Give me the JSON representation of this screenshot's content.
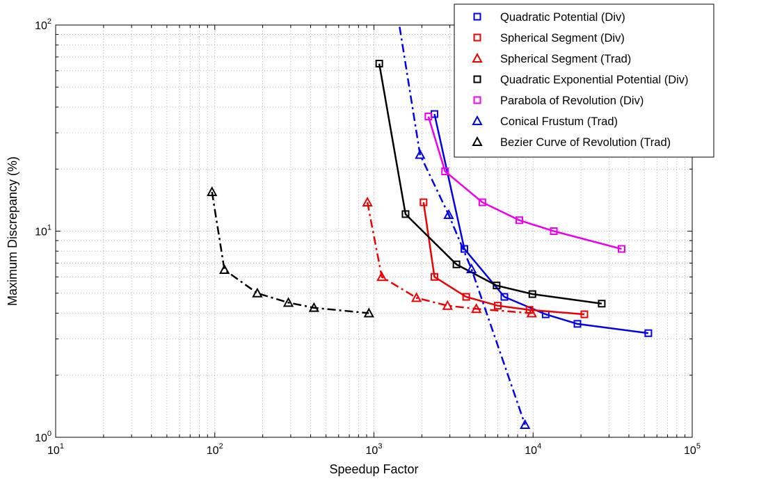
{
  "chart_data": {
    "type": "line",
    "title": "",
    "xlabel": "Speedup Factor",
    "ylabel": "Maximum Discrepancy (%)",
    "xscale": "log",
    "yscale": "log",
    "xlim": [
      10,
      100000
    ],
    "ylim": [
      1,
      100
    ],
    "grid": true,
    "legend_position": "top-right",
    "x_ticks": [
      {
        "base": "10",
        "exp": "1",
        "value": 10
      },
      {
        "base": "10",
        "exp": "2",
        "value": 100
      },
      {
        "base": "10",
        "exp": "3",
        "value": 1000
      },
      {
        "base": "10",
        "exp": "4",
        "value": 10000
      },
      {
        "base": "10",
        "exp": "5",
        "value": 100000
      }
    ],
    "y_ticks": [
      {
        "base": "10",
        "exp": "0",
        "value": 1
      },
      {
        "base": "10",
        "exp": "1",
        "value": 10
      },
      {
        "base": "10",
        "exp": "2",
        "value": 100
      }
    ],
    "series": [
      {
        "name": "Quadratic Potential (Div)",
        "color": "#0000ee",
        "marker": "square",
        "line": "solid",
        "points": [
          [
            2400,
            37
          ],
          [
            3700,
            8.2
          ],
          [
            6600,
            4.8
          ],
          [
            12000,
            3.95
          ],
          [
            19000,
            3.55
          ],
          [
            53000,
            3.2
          ]
        ]
      },
      {
        "name": "Spherical Segment (Div)",
        "color": "#ee0000",
        "marker": "square",
        "line": "solid",
        "points": [
          [
            2050,
            13.8
          ],
          [
            2400,
            6.0
          ],
          [
            3800,
            4.8
          ],
          [
            6000,
            4.35
          ],
          [
            9500,
            4.15
          ],
          [
            21000,
            3.95
          ]
        ]
      },
      {
        "name": "Spherical Segment (Trad)",
        "color": "#ee0000",
        "marker": "triangle",
        "line": "dashdot",
        "points": [
          [
            910,
            13.8
          ],
          [
            1120,
            6.0
          ],
          [
            1850,
            4.75
          ],
          [
            2900,
            4.35
          ],
          [
            4400,
            4.2
          ],
          [
            9800,
            4.0
          ]
        ]
      },
      {
        "name": "Quadratic Exponential Potential (Div)",
        "color": "#000000",
        "marker": "square",
        "line": "solid",
        "points": [
          [
            1080,
            65
          ],
          [
            1580,
            12.1
          ],
          [
            3300,
            6.9
          ],
          [
            5900,
            5.45
          ],
          [
            9900,
            4.95
          ],
          [
            27000,
            4.45
          ]
        ]
      },
      {
        "name": "Parabola of Revolution (Div)",
        "color": "#ee00ee",
        "marker": "square",
        "line": "solid",
        "points": [
          [
            2200,
            36
          ],
          [
            2800,
            19.5
          ],
          [
            4800,
            13.8
          ],
          [
            8200,
            11.3
          ],
          [
            13500,
            10.0
          ],
          [
            36000,
            8.2
          ]
        ]
      },
      {
        "name": "Conical Frustum (Trad)",
        "color": "#0000ee",
        "marker": "triangle",
        "line": "dashdot",
        "points": [
          [
            1450,
            98
          ],
          [
            1950,
            23.5
          ],
          [
            2950,
            12.0
          ],
          [
            4100,
            6.55
          ],
          [
            8900,
            1.15
          ]
        ]
      },
      {
        "name": "Bezier Curve of Revolution (Trad)",
        "color": "#000000",
        "marker": "triangle",
        "line": "dashdot",
        "points": [
          [
            96,
            15.5
          ],
          [
            115,
            6.5
          ],
          [
            185,
            5.0
          ],
          [
            290,
            4.5
          ],
          [
            420,
            4.25
          ],
          [
            930,
            4.0
          ]
        ]
      }
    ]
  }
}
